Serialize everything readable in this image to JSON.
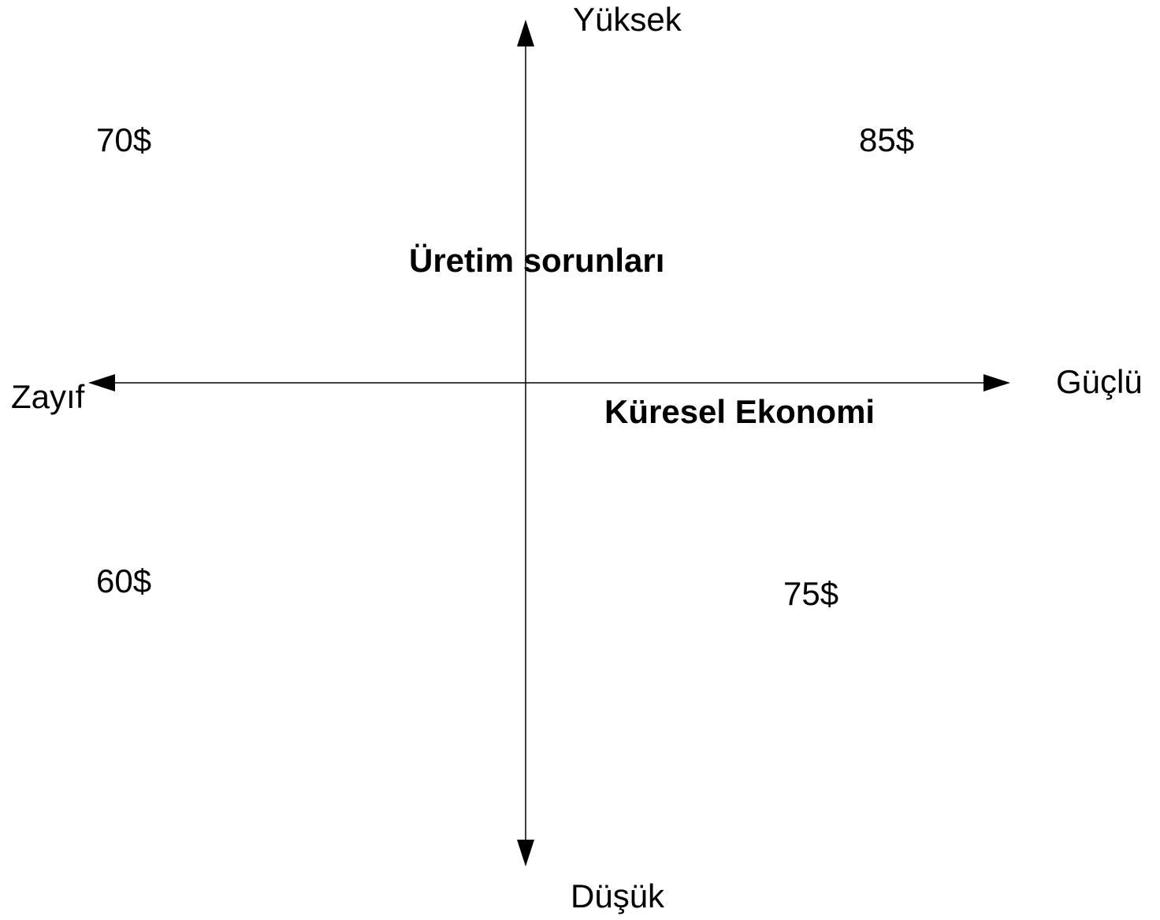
{
  "axes": {
    "vertical": {
      "top": "Yüksek",
      "bottom": "Düşük"
    },
    "horizontal": {
      "left": "Zayıf",
      "right": "Güçlü"
    }
  },
  "annotations": {
    "vertical_axis": "Üretim sorunları",
    "horizontal_axis": "Küresel Ekonomi"
  },
  "quadrants": {
    "top_left": "70$",
    "top_right": "85$",
    "bottom_left": "60$",
    "bottom_right": "75$"
  }
}
